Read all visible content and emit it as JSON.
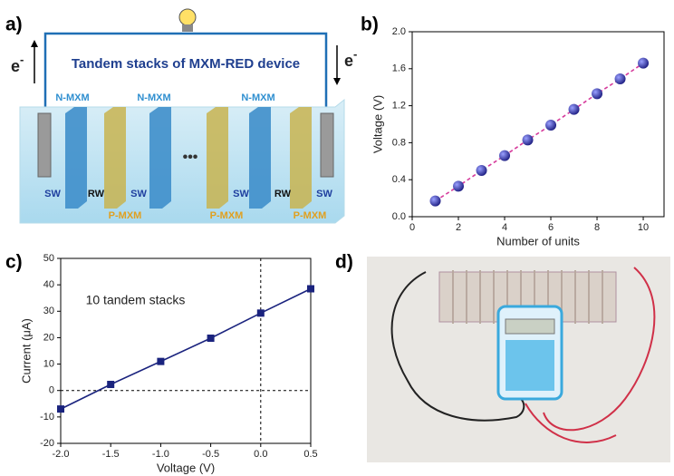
{
  "panel_labels": [
    "a)",
    "b)",
    "c)",
    "d)"
  ],
  "diagram": {
    "title": "Tandem stacks of MXM-RED device",
    "electron": "e",
    "electron_sign": "-",
    "n_membranes": [
      "N-MXM",
      "N-MXM",
      "N-MXM"
    ],
    "p_membranes": [
      "P-MXM",
      "P-MXM",
      "P-MXM"
    ],
    "sw": [
      "SW",
      "SW",
      "SW",
      "SW"
    ],
    "rw": [
      "RW",
      "RW"
    ],
    "ellipsis": "•••"
  },
  "chart_data": [
    {
      "type": "line",
      "x_label": "Number of units",
      "y_label": "Voltage (V)",
      "x": [
        1,
        2,
        3,
        4,
        5,
        6,
        7,
        8,
        9,
        10
      ],
      "series": [
        {
          "values": [
            0.17,
            0.33,
            0.5,
            0.66,
            0.83,
            0.99,
            1.16,
            1.33,
            1.49,
            1.66
          ],
          "color": "#2b2b9c",
          "line_color": "#d63a9b",
          "line_style": "dashed",
          "marker": "circle"
        }
      ],
      "xlim": [
        0,
        10.9
      ],
      "xticks": [
        0,
        2,
        4,
        6,
        8,
        10
      ],
      "ylim": [
        0,
        2.0
      ],
      "yticks": [
        {
          "value": 0,
          "label": "0.0"
        },
        0.4,
        0.8,
        1.2,
        1.6,
        {
          "value": 2.0,
          "label": "2.0"
        }
      ]
    },
    {
      "type": "line",
      "x_label": "Voltage (V)",
      "y_label": "Current (μA)",
      "annotation": "10 tandem stacks",
      "x": [
        -2.0,
        -1.5,
        -1.0,
        -0.5,
        0.0,
        0.5
      ],
      "series": [
        {
          "values": [
            -7,
            2.3,
            11,
            19.8,
            29.3,
            38.5
          ],
          "color": "#1a237e",
          "line_color": "#1a237e",
          "line_style": "solid",
          "marker": "square"
        }
      ],
      "xlim": [
        -2.0,
        0.5
      ],
      "xticks": [
        {
          "value": -2.0,
          "label": "-2.0"
        },
        -1.5,
        {
          "value": -1.0,
          "label": "-1.0"
        },
        -0.5,
        {
          "value": 0.0,
          "label": "0.0"
        },
        0.5
      ],
      "ylim": [
        -20,
        50
      ],
      "yticks": [
        -20,
        -10,
        0,
        10,
        20,
        30,
        40,
        50
      ],
      "zero_lines": true
    }
  ]
}
